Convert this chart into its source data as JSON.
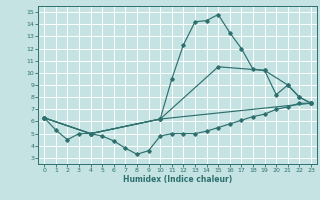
{
  "xlabel": "Humidex (Indice chaleur)",
  "xlim": [
    -0.5,
    23.5
  ],
  "ylim": [
    2.5,
    15.5
  ],
  "xticks": [
    0,
    1,
    2,
    3,
    4,
    5,
    6,
    7,
    8,
    9,
    10,
    11,
    12,
    13,
    14,
    15,
    16,
    17,
    18,
    19,
    20,
    21,
    22,
    23
  ],
  "yticks": [
    3,
    4,
    5,
    6,
    7,
    8,
    9,
    10,
    11,
    12,
    13,
    14,
    15
  ],
  "bg_color": "#c5e3e3",
  "grid_color": "#ffffff",
  "line_color": "#2d706e",
  "line1_x": [
    0,
    1,
    2,
    3,
    4,
    5,
    6,
    7,
    8,
    9,
    10,
    11,
    12,
    13,
    14,
    15,
    16,
    17,
    18,
    19,
    20,
    21,
    22,
    23
  ],
  "line1_y": [
    6.3,
    5.3,
    4.5,
    5.0,
    5.0,
    4.8,
    4.4,
    3.8,
    3.3,
    3.6,
    4.8,
    5.0,
    5.0,
    5.0,
    5.2,
    5.5,
    5.8,
    6.1,
    6.4,
    6.6,
    7.0,
    7.2,
    7.5,
    7.5
  ],
  "line2_x": [
    0,
    4,
    10,
    11,
    12,
    13,
    14,
    15,
    16,
    17,
    18,
    19,
    20,
    21,
    22,
    23
  ],
  "line2_y": [
    6.3,
    5.0,
    6.2,
    9.5,
    12.3,
    14.2,
    14.3,
    14.8,
    13.3,
    12.0,
    10.3,
    10.2,
    8.2,
    9.0,
    8.0,
    7.5
  ],
  "line3_x": [
    0,
    4,
    10,
    15,
    19,
    21,
    22,
    23
  ],
  "line3_y": [
    6.3,
    5.0,
    6.2,
    10.5,
    10.2,
    9.0,
    8.0,
    7.5
  ],
  "line4_x": [
    0,
    4,
    10,
    23
  ],
  "line4_y": [
    6.3,
    5.0,
    6.2,
    7.5
  ]
}
